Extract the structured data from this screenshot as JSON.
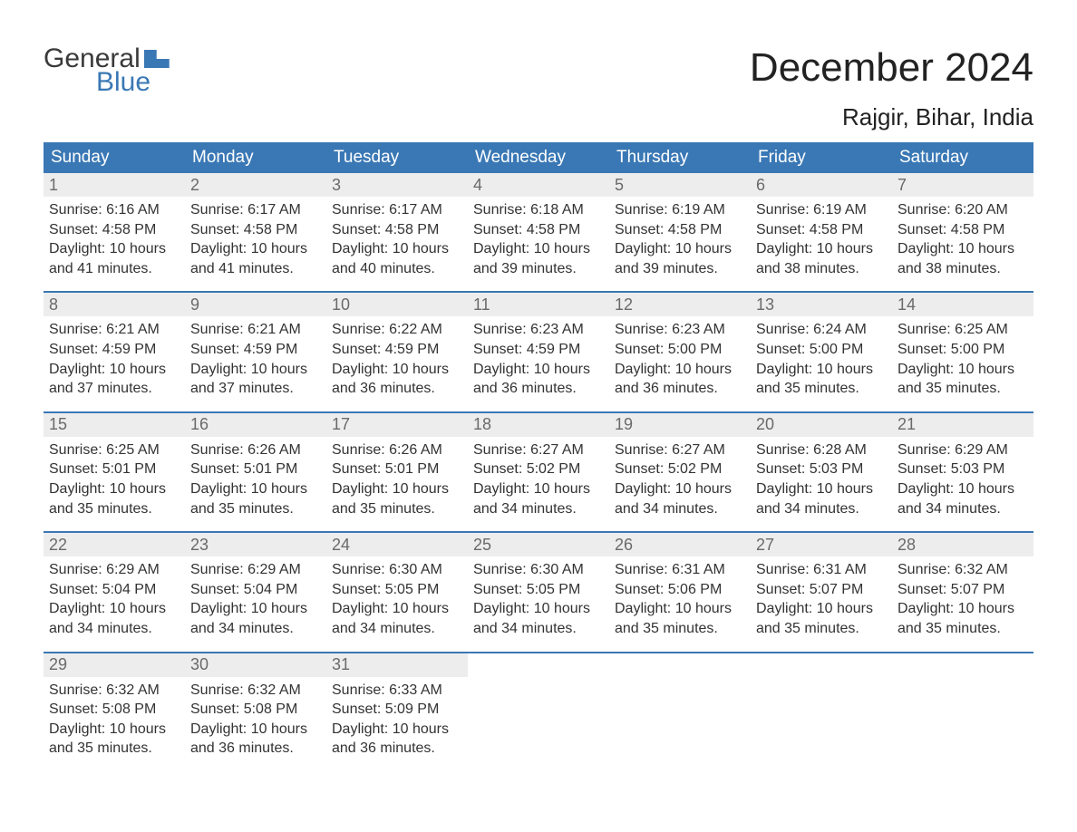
{
  "brand": {
    "top": "General",
    "bottom": "Blue"
  },
  "title": "December 2024",
  "location": "Rajgir, Bihar, India",
  "colors": {
    "header_bg": "#3a78b5",
    "header_text": "#ffffff",
    "daynum_bg": "#ededed",
    "daynum_text": "#6a6a6a",
    "body_bg": "#ffffff",
    "text": "#333333",
    "week_border": "#3a78b5"
  },
  "type": "calendar",
  "columns": 7,
  "day_names": [
    "Sunday",
    "Monday",
    "Tuesday",
    "Wednesday",
    "Thursday",
    "Friday",
    "Saturday"
  ],
  "label_sunrise": "Sunrise: ",
  "label_sunset": "Sunset: ",
  "label_daylight_prefix": "Daylight: ",
  "label_daylight_join": " and ",
  "label_daylight_suffix": " minutes.",
  "weeks": [
    [
      {
        "n": 1,
        "sunrise": "6:16 AM",
        "sunset": "4:58 PM",
        "dl_h": "10 hours",
        "dl_m": "41"
      },
      {
        "n": 2,
        "sunrise": "6:17 AM",
        "sunset": "4:58 PM",
        "dl_h": "10 hours",
        "dl_m": "41"
      },
      {
        "n": 3,
        "sunrise": "6:17 AM",
        "sunset": "4:58 PM",
        "dl_h": "10 hours",
        "dl_m": "40"
      },
      {
        "n": 4,
        "sunrise": "6:18 AM",
        "sunset": "4:58 PM",
        "dl_h": "10 hours",
        "dl_m": "39"
      },
      {
        "n": 5,
        "sunrise": "6:19 AM",
        "sunset": "4:58 PM",
        "dl_h": "10 hours",
        "dl_m": "39"
      },
      {
        "n": 6,
        "sunrise": "6:19 AM",
        "sunset": "4:58 PM",
        "dl_h": "10 hours",
        "dl_m": "38"
      },
      {
        "n": 7,
        "sunrise": "6:20 AM",
        "sunset": "4:58 PM",
        "dl_h": "10 hours",
        "dl_m": "38"
      }
    ],
    [
      {
        "n": 8,
        "sunrise": "6:21 AM",
        "sunset": "4:59 PM",
        "dl_h": "10 hours",
        "dl_m": "37"
      },
      {
        "n": 9,
        "sunrise": "6:21 AM",
        "sunset": "4:59 PM",
        "dl_h": "10 hours",
        "dl_m": "37"
      },
      {
        "n": 10,
        "sunrise": "6:22 AM",
        "sunset": "4:59 PM",
        "dl_h": "10 hours",
        "dl_m": "36"
      },
      {
        "n": 11,
        "sunrise": "6:23 AM",
        "sunset": "4:59 PM",
        "dl_h": "10 hours",
        "dl_m": "36"
      },
      {
        "n": 12,
        "sunrise": "6:23 AM",
        "sunset": "5:00 PM",
        "dl_h": "10 hours",
        "dl_m": "36"
      },
      {
        "n": 13,
        "sunrise": "6:24 AM",
        "sunset": "5:00 PM",
        "dl_h": "10 hours",
        "dl_m": "35"
      },
      {
        "n": 14,
        "sunrise": "6:25 AM",
        "sunset": "5:00 PM",
        "dl_h": "10 hours",
        "dl_m": "35"
      }
    ],
    [
      {
        "n": 15,
        "sunrise": "6:25 AM",
        "sunset": "5:01 PM",
        "dl_h": "10 hours",
        "dl_m": "35"
      },
      {
        "n": 16,
        "sunrise": "6:26 AM",
        "sunset": "5:01 PM",
        "dl_h": "10 hours",
        "dl_m": "35"
      },
      {
        "n": 17,
        "sunrise": "6:26 AM",
        "sunset": "5:01 PM",
        "dl_h": "10 hours",
        "dl_m": "35"
      },
      {
        "n": 18,
        "sunrise": "6:27 AM",
        "sunset": "5:02 PM",
        "dl_h": "10 hours",
        "dl_m": "34"
      },
      {
        "n": 19,
        "sunrise": "6:27 AM",
        "sunset": "5:02 PM",
        "dl_h": "10 hours",
        "dl_m": "34"
      },
      {
        "n": 20,
        "sunrise": "6:28 AM",
        "sunset": "5:03 PM",
        "dl_h": "10 hours",
        "dl_m": "34"
      },
      {
        "n": 21,
        "sunrise": "6:29 AM",
        "sunset": "5:03 PM",
        "dl_h": "10 hours",
        "dl_m": "34"
      }
    ],
    [
      {
        "n": 22,
        "sunrise": "6:29 AM",
        "sunset": "5:04 PM",
        "dl_h": "10 hours",
        "dl_m": "34"
      },
      {
        "n": 23,
        "sunrise": "6:29 AM",
        "sunset": "5:04 PM",
        "dl_h": "10 hours",
        "dl_m": "34"
      },
      {
        "n": 24,
        "sunrise": "6:30 AM",
        "sunset": "5:05 PM",
        "dl_h": "10 hours",
        "dl_m": "34"
      },
      {
        "n": 25,
        "sunrise": "6:30 AM",
        "sunset": "5:05 PM",
        "dl_h": "10 hours",
        "dl_m": "34"
      },
      {
        "n": 26,
        "sunrise": "6:31 AM",
        "sunset": "5:06 PM",
        "dl_h": "10 hours",
        "dl_m": "35"
      },
      {
        "n": 27,
        "sunrise": "6:31 AM",
        "sunset": "5:07 PM",
        "dl_h": "10 hours",
        "dl_m": "35"
      },
      {
        "n": 28,
        "sunrise": "6:32 AM",
        "sunset": "5:07 PM",
        "dl_h": "10 hours",
        "dl_m": "35"
      }
    ],
    [
      {
        "n": 29,
        "sunrise": "6:32 AM",
        "sunset": "5:08 PM",
        "dl_h": "10 hours",
        "dl_m": "35"
      },
      {
        "n": 30,
        "sunrise": "6:32 AM",
        "sunset": "5:08 PM",
        "dl_h": "10 hours",
        "dl_m": "36"
      },
      {
        "n": 31,
        "sunrise": "6:33 AM",
        "sunset": "5:09 PM",
        "dl_h": "10 hours",
        "dl_m": "36"
      },
      null,
      null,
      null,
      null
    ]
  ]
}
